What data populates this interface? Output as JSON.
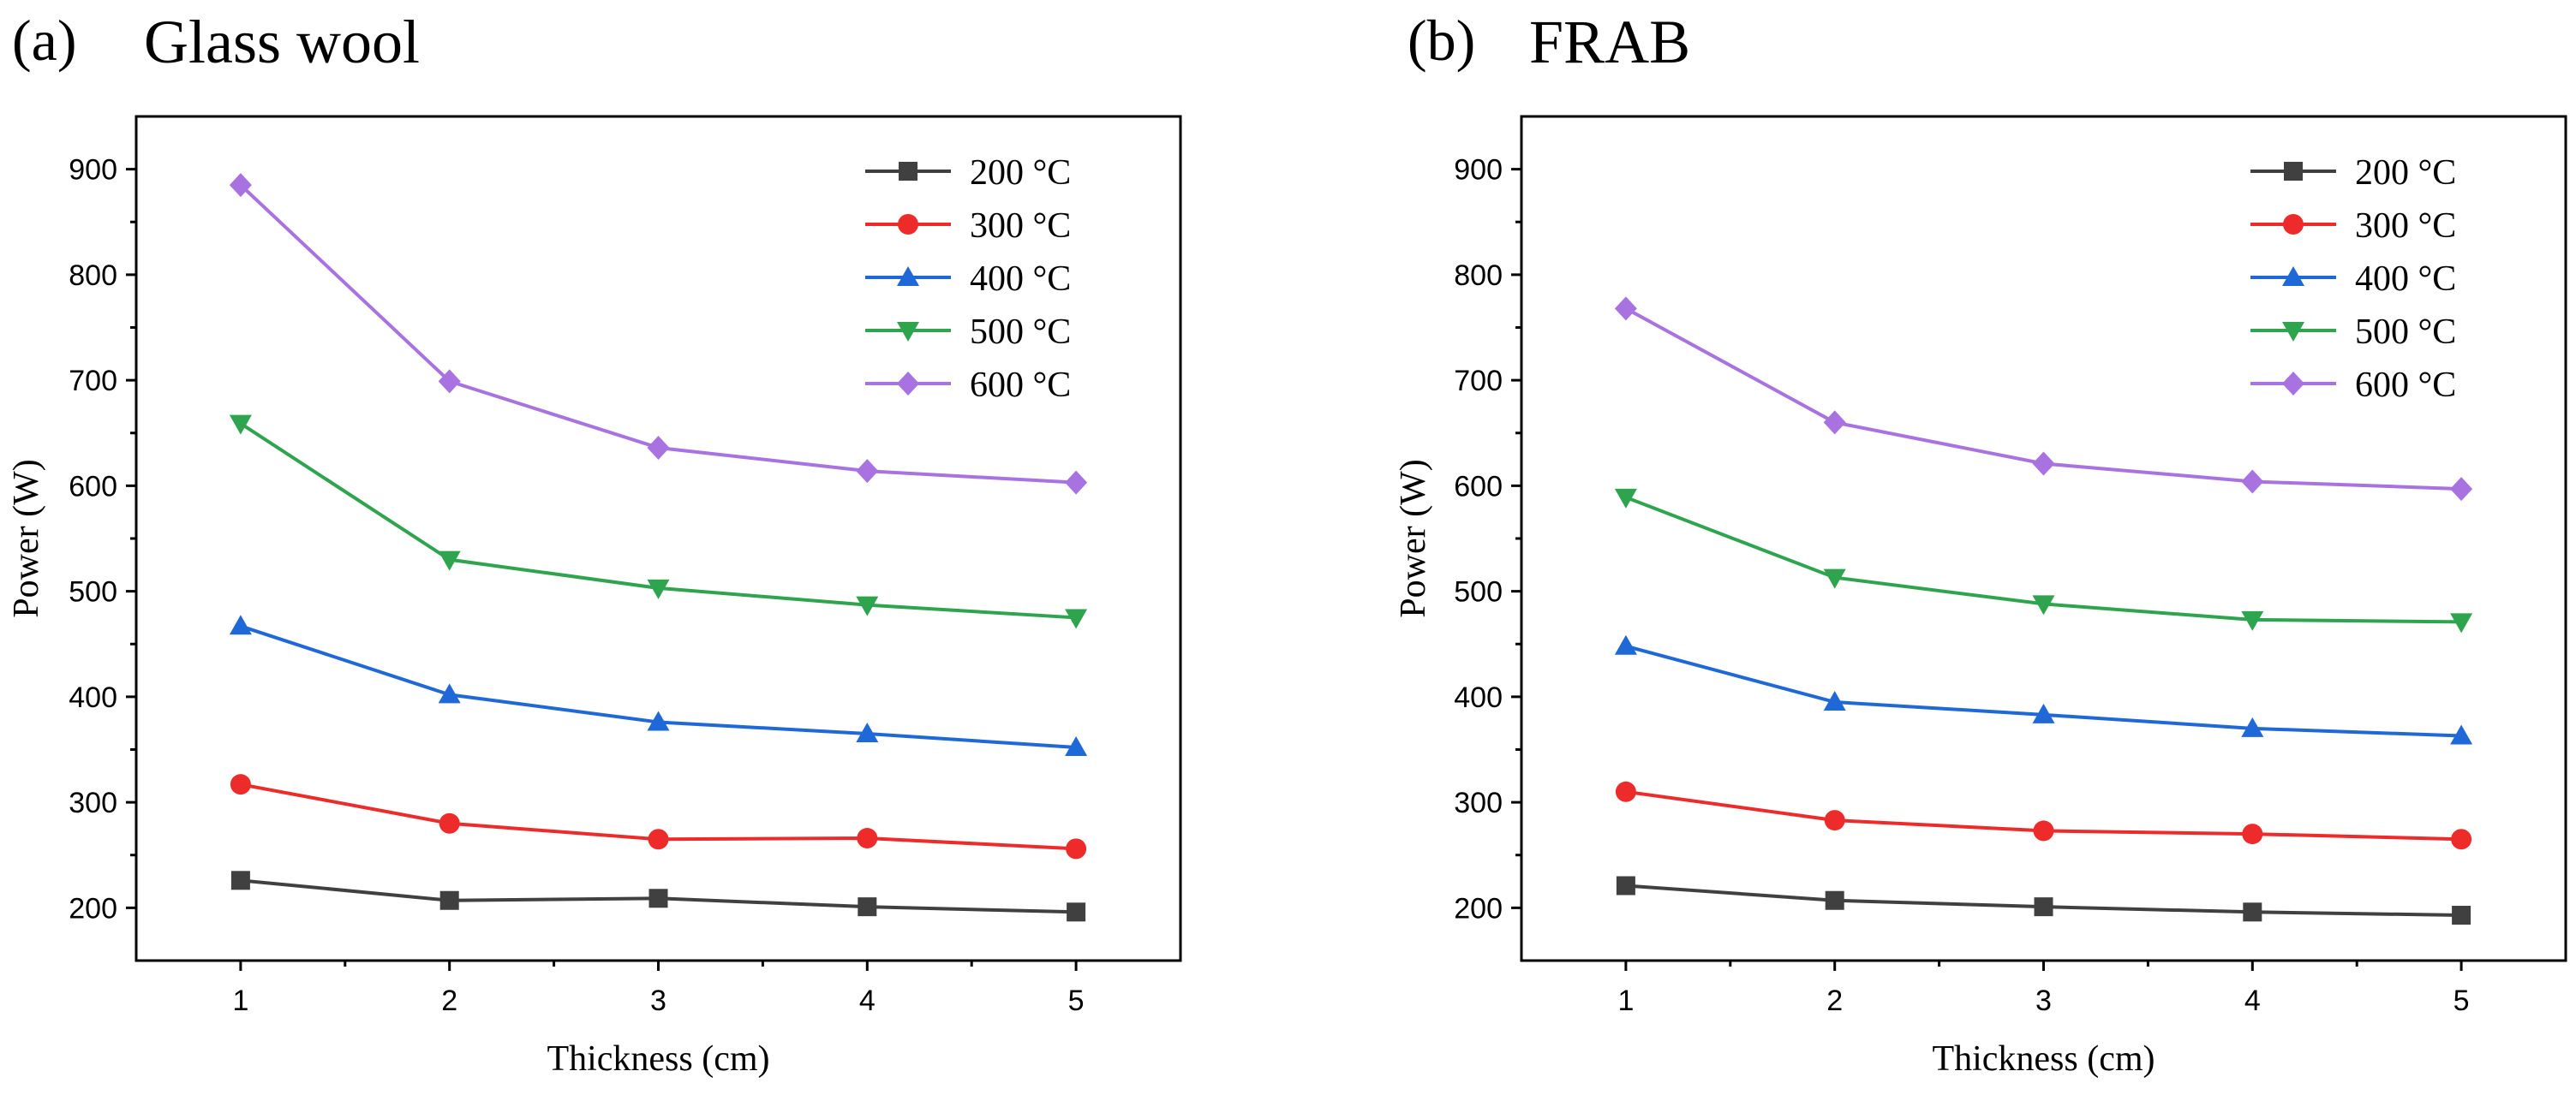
{
  "chart_data": [
    {
      "id": "a",
      "type": "line",
      "panel_label": "(a)",
      "title": "Glass wool",
      "xlabel": "Thickness (cm)",
      "ylabel": "Power (W)",
      "x": [
        1,
        2,
        3,
        4,
        5
      ],
      "xlim": [
        0.5,
        5.5
      ],
      "ylim": [
        150,
        950
      ],
      "yticks": [
        200,
        300,
        400,
        500,
        600,
        700,
        800,
        900
      ],
      "legend_position": "top-right",
      "series": [
        {
          "name": "200 °C",
          "color": "#404040",
          "marker": "square",
          "values": [
            226,
            207,
            209,
            201,
            196
          ]
        },
        {
          "name": "300 °C",
          "color": "#ee2b2b",
          "marker": "circle",
          "values": [
            317,
            280,
            265,
            266,
            256
          ]
        },
        {
          "name": "400 °C",
          "color": "#1f68d8",
          "marker": "triangle-up",
          "values": [
            467,
            402,
            376,
            365,
            352
          ]
        },
        {
          "name": "500 °C",
          "color": "#2fa44f",
          "marker": "triangle-down",
          "values": [
            659,
            530,
            503,
            487,
            475
          ]
        },
        {
          "name": "600 °C",
          "color": "#a872e0",
          "marker": "diamond",
          "values": [
            885,
            699,
            636,
            614,
            603
          ]
        }
      ]
    },
    {
      "id": "b",
      "type": "line",
      "panel_label": "(b)",
      "title": "FRAB",
      "xlabel": "Thickness (cm)",
      "ylabel": "Power (W)",
      "x": [
        1,
        2,
        3,
        4,
        5
      ],
      "xlim": [
        0.5,
        5.5
      ],
      "ylim": [
        150,
        950
      ],
      "yticks": [
        200,
        300,
        400,
        500,
        600,
        700,
        800,
        900
      ],
      "legend_position": "top-right",
      "series": [
        {
          "name": "200 °C",
          "color": "#404040",
          "marker": "square",
          "values": [
            221,
            207,
            201,
            196,
            193
          ]
        },
        {
          "name": "300 °C",
          "color": "#ee2b2b",
          "marker": "circle",
          "values": [
            310,
            283,
            273,
            270,
            265
          ]
        },
        {
          "name": "400 °C",
          "color": "#1f68d8",
          "marker": "triangle-up",
          "values": [
            448,
            395,
            383,
            370,
            363
          ]
        },
        {
          "name": "500 °C",
          "color": "#2fa44f",
          "marker": "triangle-down",
          "values": [
            589,
            513,
            488,
            473,
            471
          ]
        },
        {
          "name": "600 °C",
          "color": "#a872e0",
          "marker": "diamond",
          "values": [
            768,
            660,
            621,
            604,
            597
          ]
        }
      ]
    }
  ]
}
